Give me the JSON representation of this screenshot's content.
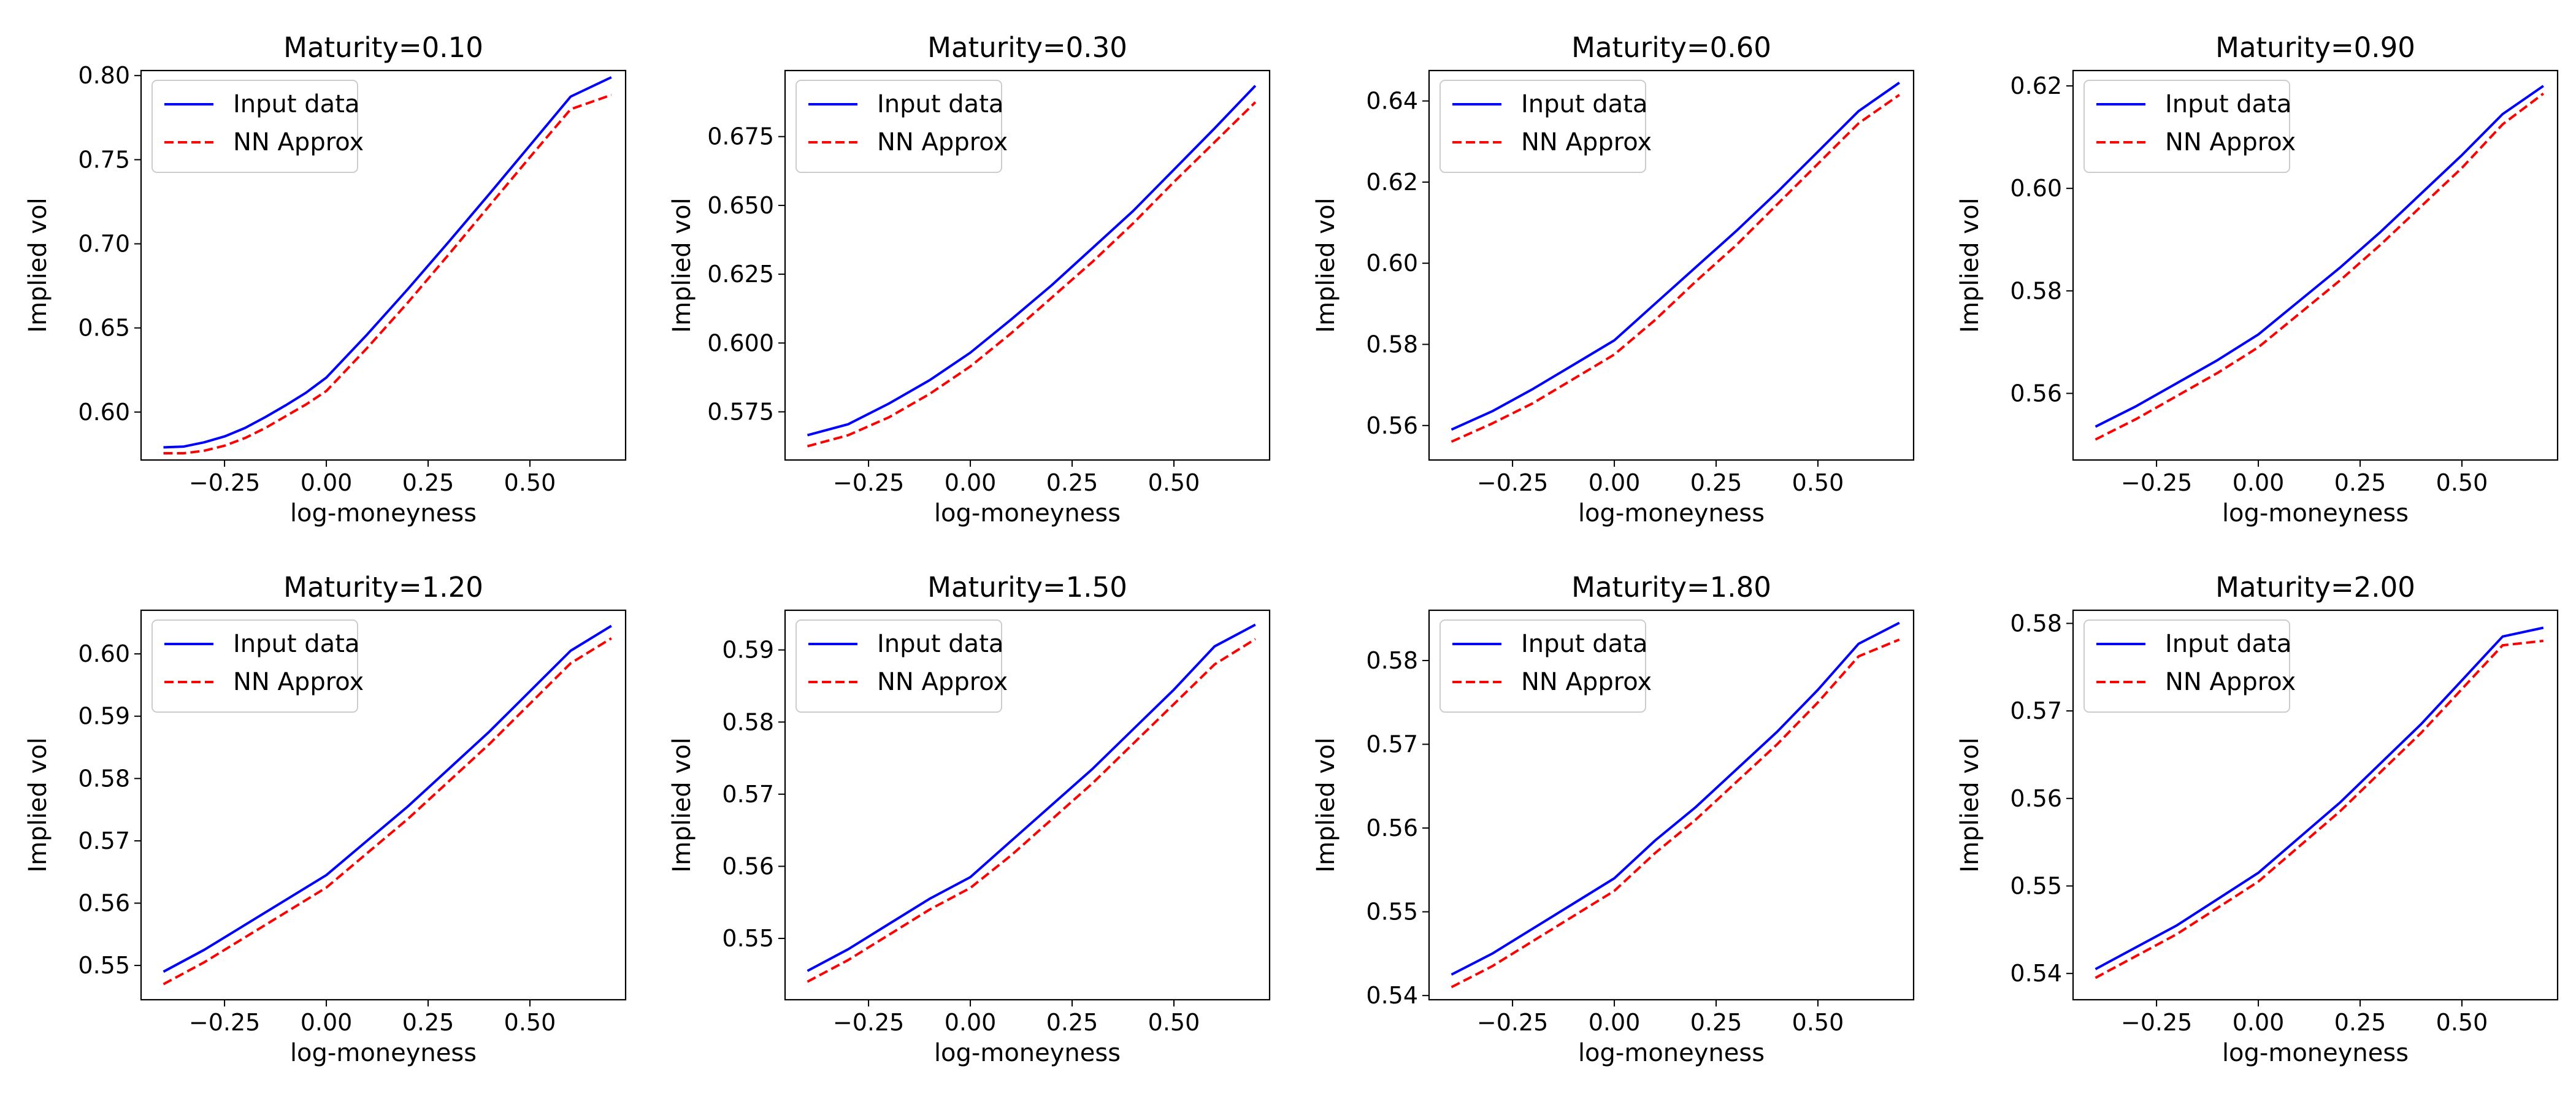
{
  "figure": {
    "background": "#ffffff"
  },
  "chart_data": [
    {
      "type": "line",
      "title": "Maturity=0.10",
      "xlabel": "log-moneyness",
      "ylabel": "Implied vol",
      "xlim": [
        -0.455,
        0.735
      ],
      "ylim": [
        0.5715,
        0.803
      ],
      "xticks": [
        -0.25,
        0.0,
        0.25,
        0.5
      ],
      "xtick_labels": [
        "−0.25",
        "0.00",
        "0.25",
        "0.50"
      ],
      "yticks": [
        0.6,
        0.65,
        0.7,
        0.75,
        0.8
      ],
      "ytick_labels": [
        "0.60",
        "0.65",
        "0.70",
        "0.75",
        "0.80"
      ],
      "legend": "top-left",
      "grid": false,
      "x": [
        -0.4,
        -0.35,
        -0.3,
        -0.25,
        -0.2,
        -0.15,
        -0.1,
        -0.05,
        0.0,
        0.1,
        0.2,
        0.3,
        0.4,
        0.5,
        0.6,
        0.7
      ],
      "series": [
        {
          "name": "Input data",
          "color": "#0000ff",
          "dash": "solid",
          "values": [
            0.579,
            0.5795,
            0.582,
            0.5855,
            0.5905,
            0.597,
            0.604,
            0.6115,
            0.6205,
            0.646,
            0.673,
            0.701,
            0.7295,
            0.7585,
            0.7875,
            0.799
          ]
        },
        {
          "name": "NN Approx",
          "color": "#ff0000",
          "dash": "dashed",
          "values": [
            0.5755,
            0.5755,
            0.577,
            0.58,
            0.5845,
            0.5905,
            0.5975,
            0.6045,
            0.6125,
            0.638,
            0.665,
            0.6935,
            0.7225,
            0.7515,
            0.78,
            0.7885
          ]
        }
      ]
    },
    {
      "type": "line",
      "title": "Maturity=0.30",
      "xlabel": "log-moneyness",
      "ylabel": "Implied vol",
      "xlim": [
        -0.455,
        0.735
      ],
      "ylim": [
        0.5575,
        0.699
      ],
      "xticks": [
        -0.25,
        0.0,
        0.25,
        0.5
      ],
      "xtick_labels": [
        "−0.25",
        "0.00",
        "0.25",
        "0.50"
      ],
      "yticks": [
        0.575,
        0.6,
        0.625,
        0.65,
        0.675
      ],
      "ytick_labels": [
        "0.575",
        "0.600",
        "0.625",
        "0.650",
        "0.675"
      ],
      "legend": "top-left",
      "grid": false,
      "x": [
        -0.4,
        -0.3,
        -0.2,
        -0.1,
        0.0,
        0.1,
        0.2,
        0.3,
        0.4,
        0.5,
        0.6,
        0.7
      ],
      "series": [
        {
          "name": "Input data",
          "color": "#0000ff",
          "dash": "solid",
          "values": [
            0.5665,
            0.5705,
            0.578,
            0.5865,
            0.5965,
            0.6085,
            0.621,
            0.6345,
            0.648,
            0.663,
            0.678,
            0.6935
          ]
        },
        {
          "name": "NN Approx",
          "color": "#ff0000",
          "dash": "dashed",
          "values": [
            0.5625,
            0.5665,
            0.573,
            0.5815,
            0.5915,
            0.6035,
            0.6165,
            0.6295,
            0.6435,
            0.6585,
            0.673,
            0.6875
          ]
        }
      ]
    },
    {
      "type": "line",
      "title": "Maturity=0.60",
      "xlabel": "log-moneyness",
      "ylabel": "Implied vol",
      "xlim": [
        -0.455,
        0.735
      ],
      "ylim": [
        0.5515,
        0.6475
      ],
      "xticks": [
        -0.25,
        0.0,
        0.25,
        0.5
      ],
      "xtick_labels": [
        "−0.25",
        "0.00",
        "0.25",
        "0.50"
      ],
      "yticks": [
        0.56,
        0.58,
        0.6,
        0.62,
        0.64
      ],
      "ytick_labels": [
        "0.56",
        "0.58",
        "0.60",
        "0.62",
        "0.64"
      ],
      "legend": "top-left",
      "grid": false,
      "x": [
        -0.4,
        -0.3,
        -0.2,
        -0.1,
        0.0,
        0.1,
        0.2,
        0.3,
        0.4,
        0.5,
        0.6,
        0.7
      ],
      "series": [
        {
          "name": "Input data",
          "color": "#0000ff",
          "dash": "solid",
          "values": [
            0.559,
            0.5635,
            0.569,
            0.575,
            0.581,
            0.59,
            0.599,
            0.608,
            0.6175,
            0.6275,
            0.6375,
            0.6445
          ]
        },
        {
          "name": "NN Approx",
          "color": "#ff0000",
          "dash": "dashed",
          "values": [
            0.556,
            0.5605,
            0.5655,
            0.5715,
            0.5775,
            0.586,
            0.5955,
            0.6045,
            0.6145,
            0.6245,
            0.6345,
            0.6415
          ]
        }
      ]
    },
    {
      "type": "line",
      "title": "Maturity=0.90",
      "xlabel": "log-moneyness",
      "ylabel": "Implied vol",
      "xlim": [
        -0.455,
        0.735
      ],
      "ylim": [
        0.547,
        0.623
      ],
      "xticks": [
        -0.25,
        0.0,
        0.25,
        0.5
      ],
      "xtick_labels": [
        "−0.25",
        "0.00",
        "0.25",
        "0.50"
      ],
      "yticks": [
        0.56,
        0.58,
        0.6,
        0.62
      ],
      "ytick_labels": [
        "0.56",
        "0.58",
        "0.60",
        "0.62"
      ],
      "legend": "top-left",
      "grid": false,
      "x": [
        -0.4,
        -0.3,
        -0.2,
        -0.1,
        0.0,
        0.1,
        0.2,
        0.3,
        0.4,
        0.5,
        0.6,
        0.7
      ],
      "series": [
        {
          "name": "Input data",
          "color": "#0000ff",
          "dash": "solid",
          "values": [
            0.5535,
            0.5575,
            0.562,
            0.5665,
            0.5715,
            0.578,
            0.5845,
            0.5915,
            0.599,
            0.6065,
            0.6145,
            0.62
          ]
        },
        {
          "name": "NN Approx",
          "color": "#ff0000",
          "dash": "dashed",
          "values": [
            0.551,
            0.555,
            0.5595,
            0.564,
            0.569,
            0.5755,
            0.582,
            0.589,
            0.5965,
            0.604,
            0.6125,
            0.6185
          ]
        }
      ]
    },
    {
      "type": "line",
      "title": "Maturity=1.20",
      "xlabel": "log-moneyness",
      "ylabel": "Implied vol",
      "xlim": [
        -0.455,
        0.735
      ],
      "ylim": [
        0.5445,
        0.607
      ],
      "xticks": [
        -0.25,
        0.0,
        0.25,
        0.5
      ],
      "xtick_labels": [
        "−0.25",
        "0.00",
        "0.25",
        "0.50"
      ],
      "yticks": [
        0.55,
        0.56,
        0.57,
        0.58,
        0.59,
        0.6
      ],
      "ytick_labels": [
        "0.55",
        "0.56",
        "0.57",
        "0.58",
        "0.59",
        "0.60"
      ],
      "legend": "top-left",
      "grid": false,
      "x": [
        -0.4,
        -0.3,
        -0.2,
        -0.1,
        0.0,
        0.1,
        0.2,
        0.3,
        0.4,
        0.5,
        0.6,
        0.7
      ],
      "series": [
        {
          "name": "Input data",
          "color": "#0000ff",
          "dash": "solid",
          "values": [
            0.549,
            0.5525,
            0.5565,
            0.5605,
            0.5645,
            0.57,
            0.5755,
            0.5815,
            0.5875,
            0.594,
            0.6005,
            0.6045
          ]
        },
        {
          "name": "NN Approx",
          "color": "#ff0000",
          "dash": "dashed",
          "values": [
            0.547,
            0.5505,
            0.5545,
            0.5585,
            0.5625,
            0.568,
            0.5735,
            0.5795,
            0.5855,
            0.592,
            0.5985,
            0.6025
          ]
        }
      ]
    },
    {
      "type": "line",
      "title": "Maturity=1.50",
      "xlabel": "log-moneyness",
      "ylabel": "Implied vol",
      "xlim": [
        -0.455,
        0.735
      ],
      "ylim": [
        0.5415,
        0.5955
      ],
      "xticks": [
        -0.25,
        0.0,
        0.25,
        0.5
      ],
      "xtick_labels": [
        "−0.25",
        "0.00",
        "0.25",
        "0.50"
      ],
      "yticks": [
        0.55,
        0.56,
        0.57,
        0.58,
        0.59
      ],
      "ytick_labels": [
        "0.55",
        "0.56",
        "0.57",
        "0.58",
        "0.59"
      ],
      "legend": "top-left",
      "grid": false,
      "x": [
        -0.4,
        -0.3,
        -0.2,
        -0.1,
        0.0,
        0.1,
        0.2,
        0.3,
        0.4,
        0.5,
        0.6,
        0.7
      ],
      "series": [
        {
          "name": "Input data",
          "color": "#0000ff",
          "dash": "solid",
          "values": [
            0.5455,
            0.5485,
            0.552,
            0.5555,
            0.5585,
            0.5635,
            0.5685,
            0.5735,
            0.579,
            0.5845,
            0.5905,
            0.5935
          ]
        },
        {
          "name": "NN Approx",
          "color": "#ff0000",
          "dash": "dashed",
          "values": [
            0.544,
            0.547,
            0.5505,
            0.554,
            0.557,
            0.5615,
            0.5665,
            0.5715,
            0.577,
            0.5825,
            0.588,
            0.5915
          ]
        }
      ]
    },
    {
      "type": "line",
      "title": "Maturity=1.80",
      "xlabel": "log-moneyness",
      "ylabel": "Implied vol",
      "xlim": [
        -0.455,
        0.735
      ],
      "ylim": [
        0.5395,
        0.586
      ],
      "xticks": [
        -0.25,
        0.0,
        0.25,
        0.5
      ],
      "xtick_labels": [
        "−0.25",
        "0.00",
        "0.25",
        "0.50"
      ],
      "yticks": [
        0.54,
        0.55,
        0.56,
        0.57,
        0.58
      ],
      "ytick_labels": [
        "0.54",
        "0.55",
        "0.56",
        "0.57",
        "0.58"
      ],
      "legend": "top-left",
      "grid": false,
      "x": [
        -0.4,
        -0.3,
        -0.2,
        -0.1,
        0.0,
        0.1,
        0.2,
        0.3,
        0.4,
        0.5,
        0.6,
        0.7
      ],
      "series": [
        {
          "name": "Input data",
          "color": "#0000ff",
          "dash": "solid",
          "values": [
            0.5425,
            0.545,
            0.548,
            0.551,
            0.554,
            0.5585,
            0.5625,
            0.567,
            0.5715,
            0.5765,
            0.582,
            0.5845
          ]
        },
        {
          "name": "NN Approx",
          "color": "#ff0000",
          "dash": "dashed",
          "values": [
            0.541,
            0.5435,
            0.5465,
            0.5495,
            0.5525,
            0.557,
            0.561,
            0.5655,
            0.57,
            0.575,
            0.5805,
            0.5825
          ]
        }
      ]
    },
    {
      "type": "line",
      "title": "Maturity=2.00",
      "xlabel": "log-moneyness",
      "ylabel": "Implied vol",
      "xlim": [
        -0.455,
        0.735
      ],
      "ylim": [
        0.537,
        0.5815
      ],
      "xticks": [
        -0.25,
        0.0,
        0.25,
        0.5
      ],
      "xtick_labels": [
        "−0.25",
        "0.00",
        "0.25",
        "0.50"
      ],
      "yticks": [
        0.54,
        0.55,
        0.56,
        0.57,
        0.58
      ],
      "ytick_labels": [
        "0.54",
        "0.55",
        "0.56",
        "0.57",
        "0.58"
      ],
      "legend": "top-left",
      "grid": false,
      "x": [
        -0.4,
        -0.3,
        -0.2,
        -0.1,
        0.0,
        0.1,
        0.2,
        0.3,
        0.4,
        0.5,
        0.6,
        0.7
      ],
      "series": [
        {
          "name": "Input data",
          "color": "#0000ff",
          "dash": "solid",
          "values": [
            0.5405,
            0.543,
            0.5455,
            0.5485,
            0.5515,
            0.5555,
            0.5595,
            0.564,
            0.5685,
            0.5735,
            0.5785,
            0.5795
          ]
        },
        {
          "name": "NN Approx",
          "color": "#ff0000",
          "dash": "dashed",
          "values": [
            0.5395,
            0.542,
            0.5445,
            0.5475,
            0.5505,
            0.5545,
            0.5585,
            0.563,
            0.5675,
            0.5725,
            0.5775,
            0.578
          ]
        }
      ]
    }
  ]
}
